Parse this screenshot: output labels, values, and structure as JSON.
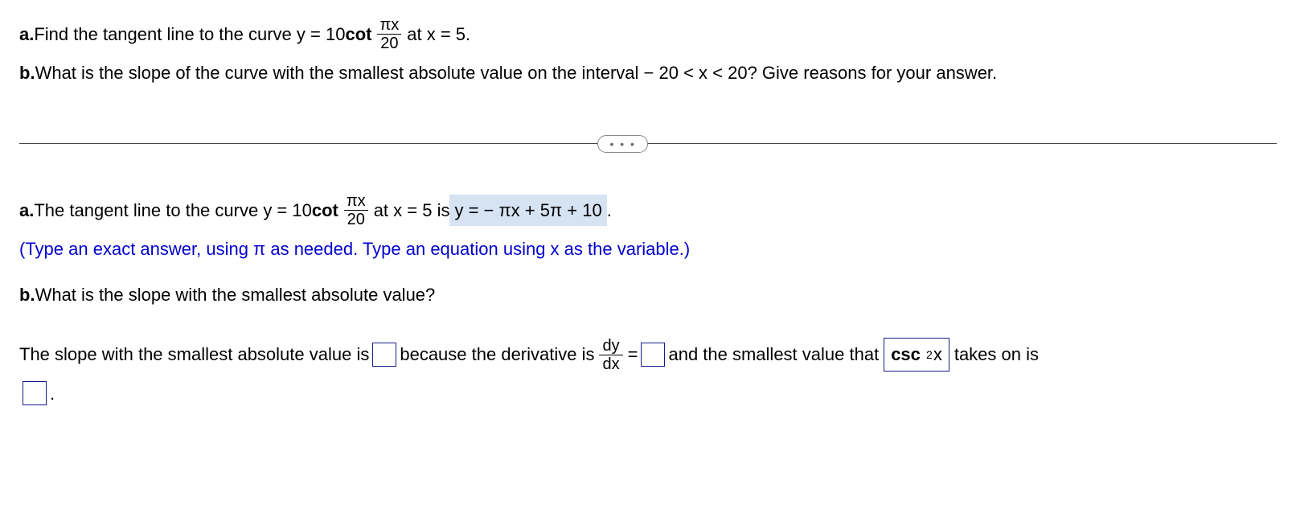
{
  "q": {
    "a_label": "a.",
    "a_text1": " Find the tangent line to the curve y = 10",
    "a_cot": "cot",
    "a_frac_num": "πx",
    "a_frac_den": "20",
    "a_text2": " at x = 5.",
    "b_label": "b.",
    "b_text": " What is the slope of the curve with the smallest absolute value on the interval  − 20 < x < 20? Give reasons for your answer."
  },
  "divider_dots": "• • •",
  "ans": {
    "a_label": "a.",
    "a_text1": " The tangent line to the curve y = 10",
    "a_cot": "cot",
    "a_frac_num": "πx",
    "a_frac_den": "20",
    "a_text2": " at x = 5 is  ",
    "a_highlight": "y = − πx + 5π + 10",
    "a_period": " .",
    "instruction": "(Type an exact answer, using π as needed. Type an equation using x as the variable.)",
    "b_label": "b.",
    "b_text": " What is the slope with the smallest absolute value?",
    "final1": "The slope with the smallest absolute value is ",
    "final2": " because the derivative is ",
    "dy": "dy",
    "dx": "dx",
    "eq": " = ",
    "final3": " and the smallest value that ",
    "csc": "csc",
    "csc_exp": "2",
    "csc_x": "x",
    "final4": " takes on is",
    "period": "."
  }
}
